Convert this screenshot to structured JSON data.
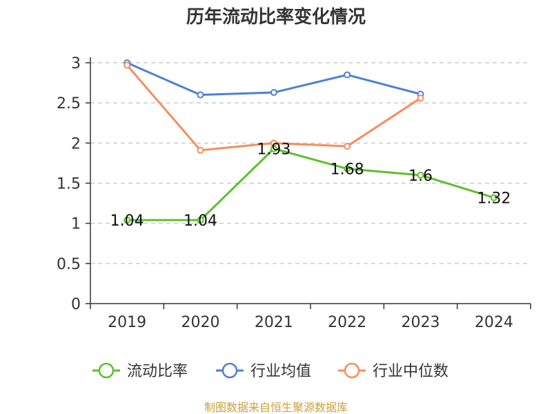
{
  "chart_data": {
    "type": "line",
    "title": "历年流动比率变化情况",
    "xlabel": "",
    "ylabel": "",
    "categories": [
      "2019",
      "2020",
      "2021",
      "2022",
      "2023",
      "2024"
    ],
    "ylim": [
      0,
      3
    ],
    "yticks": [
      0,
      0.5,
      1,
      1.5,
      2,
      2.5,
      3
    ],
    "grid": true,
    "legend_position": "bottom",
    "series": [
      {
        "name": "流动比率",
        "color": "#5cbf2a",
        "values": [
          1.04,
          1.04,
          1.93,
          1.68,
          1.6,
          1.32
        ],
        "show_labels": true
      },
      {
        "name": "行业均值",
        "color": "#4e7fd6",
        "values": [
          3.0,
          2.6,
          2.63,
          2.85,
          2.61,
          null
        ],
        "show_labels": false
      },
      {
        "name": "行业中位数",
        "color": "#f58d5c",
        "values": [
          2.97,
          1.91,
          2.0,
          1.96,
          2.56,
          null
        ],
        "show_labels": false
      }
    ]
  },
  "source_text": "制图数据来自恒生聚源数据库"
}
